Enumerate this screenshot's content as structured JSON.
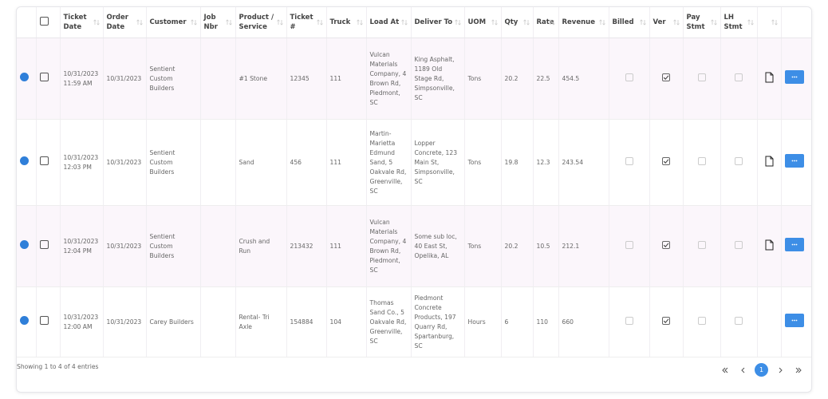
{
  "table": {
    "columns": [
      "Ticket Date",
      "Order Date",
      "Customer",
      "Job Nbr",
      "Product / Service",
      "Ticket #",
      "Truck",
      "Load At",
      "Deliver To",
      "UOM",
      "Qty",
      "Rate",
      "Revenue",
      "Billed",
      "Ver",
      "Pay Stmt",
      "LH Stmt"
    ],
    "rows": [
      {
        "ticket_date": "10/31/2023 11:59 AM",
        "order_date": "10/31/2023",
        "customer": "Sentient Custom Builders",
        "product": "#1 Stone",
        "ticket": 12345,
        "truck": 111,
        "load_at": "Vulcan Materials Company, 4 Brown Rd, Piedmont, SC",
        "deliver_to": "King Asphalt, 1189 Old Stage Rd, Simpsonville, SC",
        "uom": "Tons",
        "qty": 20.2,
        "rate": 22.5,
        "revenue": 454.5,
        "billed": false,
        "ver": true,
        "pay_stmt": false,
        "lh_stmt": false,
        "document": true
      },
      {
        "ticket_date": "10/31/2023 12:03 PM",
        "order_date": "10/31/2023",
        "customer": "Sentient Custom Builders",
        "product": "Sand",
        "ticket": 456,
        "truck": 111,
        "load_at": "Martin-Marietta Edmund Sand, 5 Oakvale Rd, Greenville, SC",
        "deliver_to": "Lopper Concrete, 123 Main St, Simpsonville, SC",
        "uom": "Tons",
        "qty": 19.8,
        "rate": 12.3,
        "revenue": 243.54,
        "billed": false,
        "ver": true,
        "pay_stmt": false,
        "lh_stmt": false,
        "document": true
      },
      {
        "ticket_date": "10/31/2023 12:04 PM",
        "order_date": "10/31/2023",
        "customer": "Sentient Custom Builders",
        "product": "Crush and Run",
        "ticket": 213432,
        "truck": 111,
        "load_at": "Vulcan Materials Company, 4 Brown Rd, Piedmont, SC",
        "deliver_to": "Some sub loc, 40 East St, Opelika, AL",
        "uom": "Tons",
        "qty": 20.2,
        "rate": 10.5,
        "revenue": 212.1,
        "billed": false,
        "ver": true,
        "pay_stmt": false,
        "lh_stmt": false,
        "document": true
      },
      {
        "ticket_date": "10/31/2023 12:00 AM",
        "order_date": "10/31/2023",
        "customer": "Carey Builders",
        "product": "Rental- Tri Axle",
        "ticket": 154884,
        "truck": 104,
        "load_at": "Thomas Sand Co., 5 Oakvale Rd, Greenville, SC",
        "deliver_to": "Piedmont Concrete Products, 197 Quarry Rd, Spartanburg, SC",
        "uom": "Hours",
        "qty": 6,
        "rate": 110,
        "revenue": 660,
        "billed": false,
        "ver": true,
        "pay_stmt": false,
        "lh_stmt": false,
        "document": false
      }
    ]
  },
  "footer": {
    "info": "Showing 1 to 4 of 4 entries",
    "pages": [
      1
    ],
    "current_page": 1
  }
}
